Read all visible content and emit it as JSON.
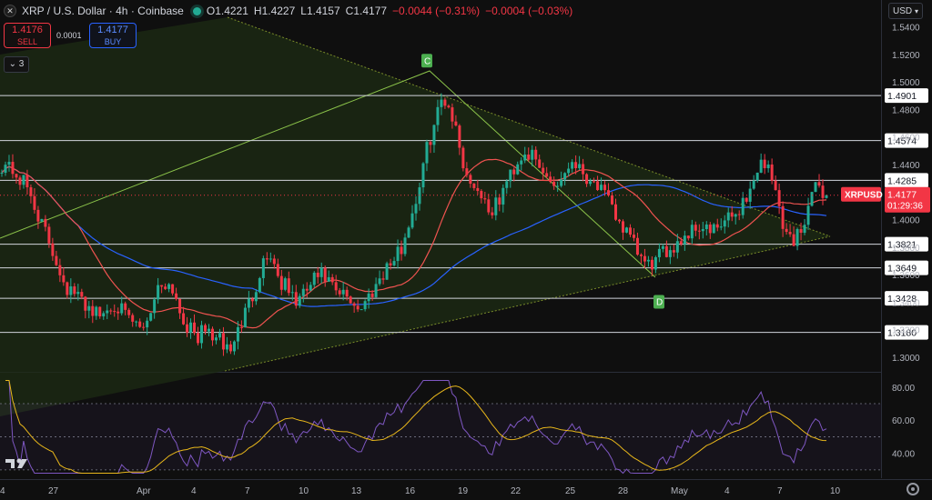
{
  "header": {
    "title": "XRP / U.S. Dollar · 4h · Coinbase",
    "logo_text": "✕",
    "open": "O1.4221",
    "high": "H1.4227",
    "low": "L1.4157",
    "close": "C1.4177",
    "change": "−0.0044 (−0.31%)",
    "change2": "−0.0004 (−0.03%)"
  },
  "trade": {
    "sell_price": "1.4176",
    "sell_label": "SELL",
    "spread": "0.0001",
    "buy_price": "1.4177",
    "buy_label": "BUY"
  },
  "indicator_toggle": "⌄ 3",
  "currency": "USD",
  "colors": {
    "up": "#22ab94",
    "down": "#f23645",
    "ma_fast": "#ef5350",
    "ma_slow": "#2962ff",
    "rsi": "#7e57c2",
    "rsi_ma": "#e8b71b",
    "triangle_fill": "#1e2c14",
    "triangle_edge": "#7a8c2a"
  },
  "chart_data": {
    "type": "candlestick",
    "symbol": "XRPUSD",
    "timeframe": "4h",
    "ylim": [
      1.29,
      1.545
    ],
    "y_ticks": [
      "1.5400",
      "1.5200",
      "1.5000",
      "1.4800",
      "1.4600",
      "1.4400",
      "1.4200",
      "1.4000",
      "1.3800",
      "1.3600",
      "1.3400",
      "1.3200",
      "1.3000"
    ],
    "x_labels": [
      "4",
      "27",
      "Apr",
      "4",
      "7",
      "10",
      "13",
      "16",
      "19",
      "22",
      "25",
      "28",
      "May",
      "4",
      "7",
      "10"
    ],
    "price_key": [
      "1.4400",
      "1.4390",
      "1.4300",
      "1.4250",
      "1.4100",
      "1.3950",
      "1.3800",
      "1.3650",
      "1.3500",
      "1.3450",
      "1.3400",
      "1.3350",
      "1.3300",
      "1.3350",
      "1.3400",
      "1.3300",
      "1.3250",
      "1.3200",
      "1.3300",
      "1.3500",
      "1.3550",
      "1.3500",
      "1.3300",
      "1.3200",
      "1.3150",
      "1.3200",
      "1.3150",
      "1.3100",
      "1.3050",
      "1.3200",
      "1.3350",
      "1.3500",
      "1.3700",
      "1.3750",
      "1.3550",
      "1.3500",
      "1.3400",
      "1.3450",
      "1.3550",
      "1.3600",
      "1.3550",
      "1.3450",
      "1.3450",
      "1.3400",
      "1.3350",
      "1.3450",
      "1.3550",
      "1.3650",
      "1.3700",
      "1.3800",
      "1.4000",
      "1.4200",
      "1.4500",
      "1.4700",
      "1.4900",
      "1.4800",
      "1.4550",
      "1.4300",
      "1.4250",
      "1.4150",
      "1.4050",
      "1.4150",
      "1.4300",
      "1.4400",
      "1.4500",
      "1.4450",
      "1.4350",
      "1.4300",
      "1.4250",
      "1.4350",
      "1.4450",
      "1.4350",
      "1.4300",
      "1.4250",
      "1.4150",
      "1.4050",
      "1.3950",
      "1.3850",
      "1.3750",
      "1.3650",
      "1.3700",
      "1.3750",
      "1.3800",
      "1.3850",
      "1.3900",
      "1.3950",
      "1.3950",
      "1.3900",
      "1.3950",
      "1.4000",
      "1.4050",
      "1.4150",
      "1.4250",
      "1.4450",
      "1.4350",
      "1.4150",
      "1.3900",
      "1.3850",
      "1.3950",
      "1.4150",
      "1.4250",
      "1.4180"
    ],
    "levels": [
      "1.4901",
      "1.4574",
      "1.4285",
      "1.3821",
      "1.3649",
      "1.3428",
      "1.3180"
    ],
    "last_price_label": "XRPUSD",
    "last_price": "1.4177",
    "countdown": "01:29:36",
    "pattern_points": [
      {
        "label": "C",
        "price": 1.5085
      },
      {
        "label": "D",
        "price": 1.3465
      }
    ],
    "rsi": {
      "ylim": [
        25,
        87
      ],
      "y_ticks": [
        "80.00",
        "60.00",
        "40.00"
      ],
      "bands": [
        70,
        50,
        30
      ]
    }
  }
}
